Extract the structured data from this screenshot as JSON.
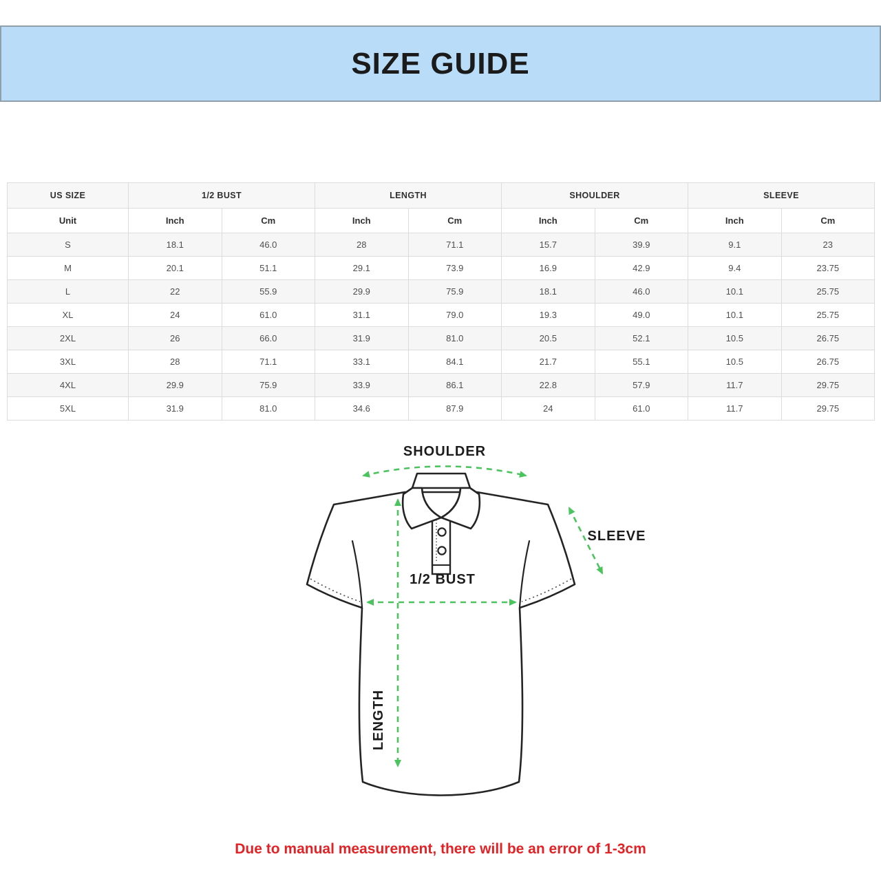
{
  "banner": {
    "title": "SIZE GUIDE",
    "bg_color": "#b9ddf8"
  },
  "table": {
    "groups": [
      {
        "label": "US SIZE",
        "span": 1
      },
      {
        "label": "1/2 BUST",
        "span": 2
      },
      {
        "label": "LENGTH",
        "span": 2
      },
      {
        "label": "SHOULDER",
        "span": 2
      },
      {
        "label": "SLEEVE",
        "span": 2
      }
    ],
    "unit_row": [
      "Unit",
      "Inch",
      "Cm",
      "Inch",
      "Cm",
      "Inch",
      "Cm",
      "Inch",
      "Cm"
    ],
    "rows": [
      [
        "S",
        "18.1",
        "46.0",
        "28",
        "71.1",
        "15.7",
        "39.9",
        "9.1",
        "23"
      ],
      [
        "M",
        "20.1",
        "51.1",
        "29.1",
        "73.9",
        "16.9",
        "42.9",
        "9.4",
        "23.75"
      ],
      [
        "L",
        "22",
        "55.9",
        "29.9",
        "75.9",
        "18.1",
        "46.0",
        "10.1",
        "25.75"
      ],
      [
        "XL",
        "24",
        "61.0",
        "31.1",
        "79.0",
        "19.3",
        "49.0",
        "10.1",
        "25.75"
      ],
      [
        "2XL",
        "26",
        "66.0",
        "31.9",
        "81.0",
        "20.5",
        "52.1",
        "10.5",
        "26.75"
      ],
      [
        "3XL",
        "28",
        "71.1",
        "33.1",
        "84.1",
        "21.7",
        "55.1",
        "10.5",
        "26.75"
      ],
      [
        "4XL",
        "29.9",
        "75.9",
        "33.9",
        "86.1",
        "22.8",
        "57.9",
        "11.7",
        "29.75"
      ],
      [
        "5XL",
        "31.9",
        "81.0",
        "34.6",
        "87.9",
        "24",
        "61.0",
        "11.7",
        "29.75"
      ]
    ]
  },
  "diagram": {
    "labels": {
      "shoulder": "SHOULDER",
      "sleeve": "SLEEVE",
      "bust": "1/2 BUST",
      "length": "LENGTH"
    },
    "arrow_color": "#4cc45e"
  },
  "note": {
    "text": "Due to manual measurement, there will be an error of 1-3cm",
    "color": "#e32226"
  }
}
